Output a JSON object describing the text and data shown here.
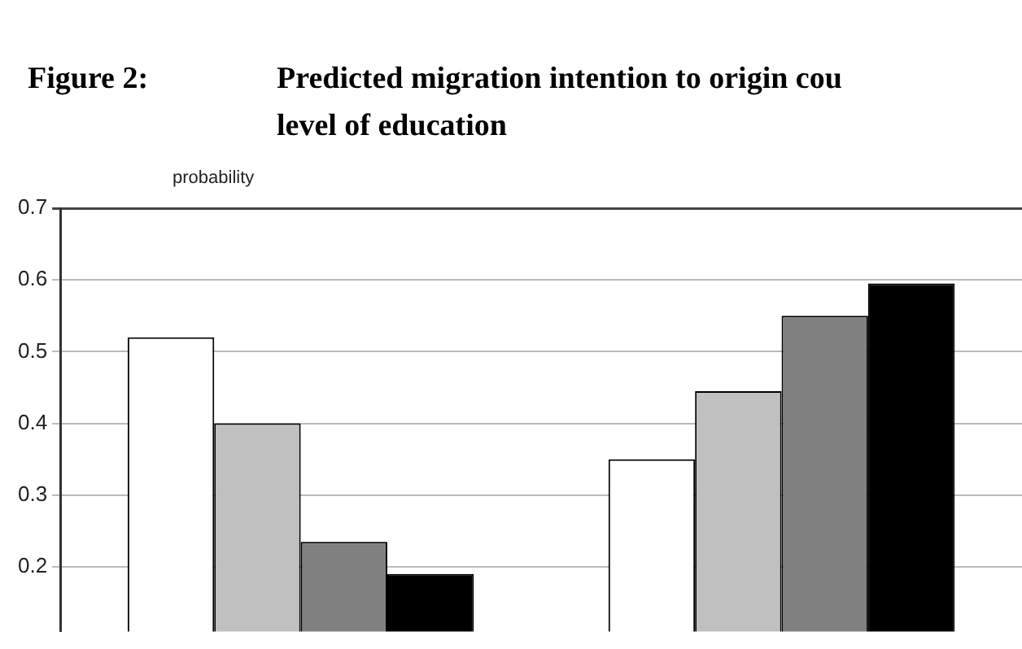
{
  "chart_data": {
    "type": "bar",
    "title": "Figure 2:",
    "subtitle": "Predicted migration intention to origin cou\nlevel of education",
    "ylabel": "probability",
    "categories": [
      null,
      null
    ],
    "series": [
      {
        "color": "#ffffff",
        "values": [
          0.52,
          0.35
        ]
      },
      {
        "color": "#c0c0c0",
        "values": [
          0.4,
          0.445
        ]
      },
      {
        "color": "#808080",
        "values": [
          0.235,
          0.55
        ]
      },
      {
        "color": "#000000",
        "values": [
          0.19,
          0.595
        ]
      }
    ],
    "ylim": [
      0.11,
      0.7
    ],
    "yticks": [
      0.2,
      0.3,
      0.4,
      0.5,
      0.6,
      0.7
    ],
    "grid": "y",
    "legend": false,
    "tick_labels": "y"
  }
}
